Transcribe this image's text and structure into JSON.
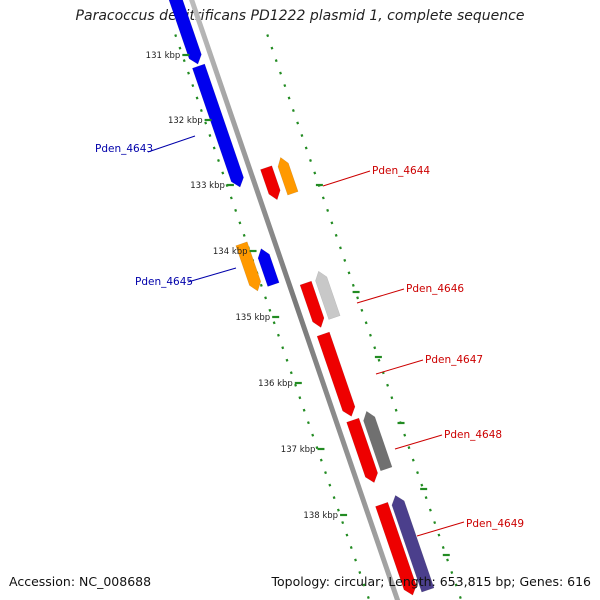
{
  "title": "Paracoccus denitrificans PD1222 plasmid 1, complete sequence",
  "accession_text": "Accession: NC_008688",
  "topology_text": "Topology: circular; Length: 653,815 bp; Genes: 616",
  "colors": {
    "backbone": "#8c8c8c",
    "tick_dots": "#228b22",
    "forward_label": "#0000aa",
    "reverse_label": "#cc0000",
    "blue": "#0000ee",
    "red": "#ee0000",
    "orange": "#ff9900",
    "lightgray": "#c8c8c8",
    "darkgray": "#707070",
    "slateblue": "#4b3f8c"
  },
  "scale_labels": [
    "131 kbp",
    "132 kbp",
    "133 kbp",
    "134 kbp",
    "135 kbp",
    "136 kbp",
    "137 kbp",
    "138 kbp"
  ],
  "labeled_genes": [
    {
      "label": "Pden_4643",
      "strand": "forward"
    },
    {
      "label": "Pden_4644",
      "strand": "reverse"
    },
    {
      "label": "Pden_4645",
      "strand": "forward"
    },
    {
      "label": "Pden_4646",
      "strand": "reverse"
    },
    {
      "label": "Pden_4647",
      "strand": "reverse"
    },
    {
      "label": "Pden_4648",
      "strand": "reverse"
    },
    {
      "label": "Pden_4649",
      "strand": "reverse"
    }
  ]
}
